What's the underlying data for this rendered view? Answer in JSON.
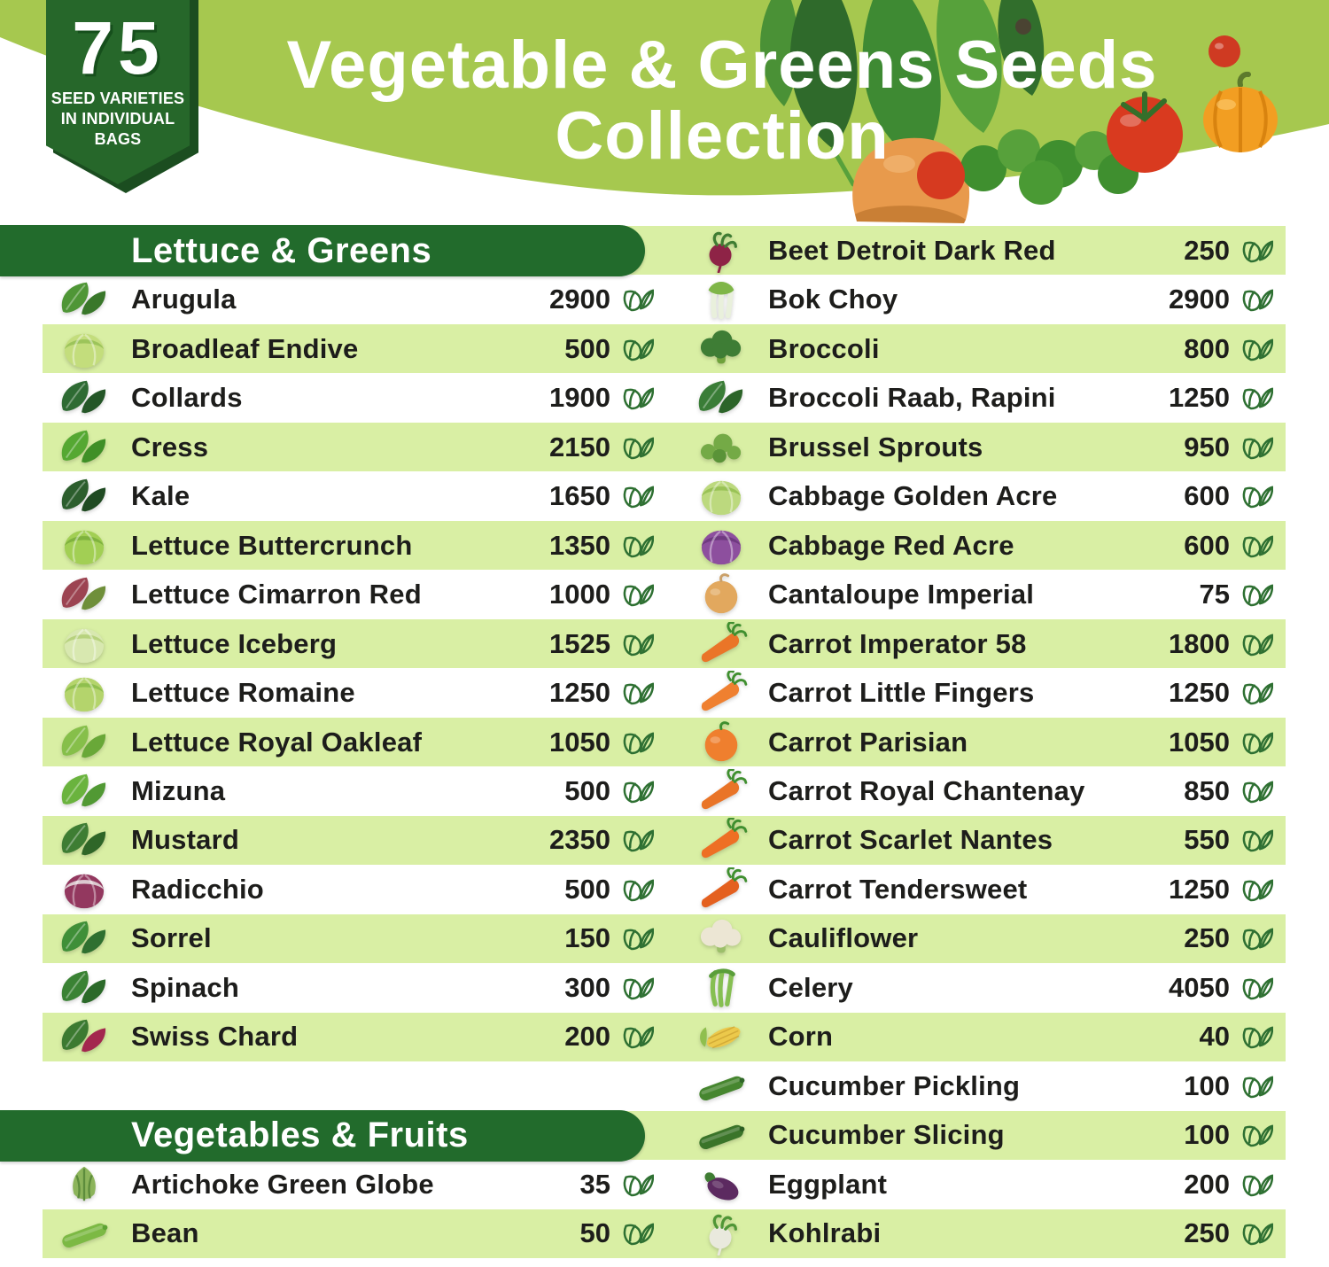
{
  "header": {
    "badge": {
      "number": "75",
      "caption_lines": [
        "SEED VARIETIES",
        "IN INDIVIDUAL",
        "BAGS"
      ]
    },
    "title_line1": "Vegetable & Greens Seeds",
    "title_line2": "Collection",
    "decor_icons": [
      "mixed-greens",
      "seed-dot",
      "cherry-tomato",
      "cantaloupe",
      "kale",
      "tomato",
      "pumpkin"
    ]
  },
  "colors": {
    "banner_green": "#a6c84f",
    "badge_green": "#26672a",
    "badge_shadow_green": "#1b4d20",
    "section_bar_green": "#226b2c",
    "stripe_green": "#d9efa4",
    "row_white": "#ffffff",
    "text_dark": "#1d1d1b",
    "seed_icon_green": "#2e7032"
  },
  "list": {
    "sections_left": [
      "Lettuce & Greens",
      "Vegetables & Fruits"
    ],
    "rows": [
      {
        "left": {
          "type": "section",
          "label": "Lettuce & Greens"
        },
        "right": {
          "type": "item",
          "name": "Beet Detroit Dark Red",
          "count": "250",
          "veg": "beet",
          "shape": "beet",
          "c1": "#8e2346",
          "c2": "#3f7d33"
        }
      },
      {
        "left": {
          "type": "item",
          "name": "Arugula",
          "count": "2900",
          "veg": "arugula",
          "shape": "leaf",
          "c1": "#4f9636",
          "c2": "#39772a"
        },
        "right": {
          "type": "item",
          "name": "Bok Choy",
          "count": "2900",
          "veg": "bok-choy",
          "shape": "bokchoy",
          "c1": "#7fb648",
          "c2": "#e9f0dc"
        }
      },
      {
        "left": {
          "type": "item",
          "name": "Broadleaf Endive",
          "count": "500",
          "veg": "broadleaf-endive",
          "shape": "head",
          "c1": "#c3dd7c",
          "c2": "#9cc45a"
        },
        "right": {
          "type": "item",
          "name": "Broccoli",
          "count": "800",
          "veg": "broccoli",
          "shape": "floret",
          "c1": "#3e7d35",
          "c2": "#6fa23c"
        }
      },
      {
        "left": {
          "type": "item",
          "name": "Collards",
          "count": "1900",
          "veg": "collards",
          "shape": "leaf",
          "c1": "#2e6b33",
          "c2": "#245627"
        },
        "right": {
          "type": "item",
          "name": "Broccoli Raab, Rapini",
          "count": "1250",
          "veg": "broccoli-raab",
          "shape": "leaf",
          "c1": "#3a7d37",
          "c2": "#2c6429"
        }
      },
      {
        "left": {
          "type": "item",
          "name": "Cress",
          "count": "2150",
          "veg": "cress",
          "shape": "leaf",
          "c1": "#55a832",
          "c2": "#3f8f27"
        },
        "right": {
          "type": "item",
          "name": "Brussel Sprouts",
          "count": "950",
          "veg": "brussel-sprouts",
          "shape": "sprouts",
          "c1": "#74aa46",
          "c2": "#5a9338"
        }
      },
      {
        "left": {
          "type": "item",
          "name": "Kale",
          "count": "1650",
          "veg": "kale",
          "shape": "leaf",
          "c1": "#2c5e2d",
          "c2": "#1f4a22"
        },
        "right": {
          "type": "item",
          "name": "Cabbage Golden Acre",
          "count": "600",
          "veg": "cabbage-golden-acre",
          "shape": "head",
          "c1": "#bcd97e",
          "c2": "#99c256"
        }
      },
      {
        "left": {
          "type": "item",
          "name": "Lettuce Buttercrunch",
          "count": "1350",
          "veg": "lettuce-buttercrunch",
          "shape": "head",
          "c1": "#a2cf54",
          "c2": "#7fb23e"
        },
        "right": {
          "type": "item",
          "name": "Cabbage Red Acre",
          "count": "600",
          "veg": "cabbage-red-acre",
          "shape": "head",
          "c1": "#8d4f9e",
          "c2": "#6f3a80"
        }
      },
      {
        "left": {
          "type": "item",
          "name": "Lettuce Cimarron Red",
          "count": "1000",
          "veg": "lettuce-cimarron-red",
          "shape": "leaf",
          "c1": "#9c4452",
          "c2": "#6f8f3a"
        },
        "right": {
          "type": "item",
          "name": "Cantaloupe Imperial",
          "count": "75",
          "veg": "cantaloupe",
          "shape": "round",
          "c1": "#e2a85e",
          "c2": "#caa069"
        }
      },
      {
        "left": {
          "type": "item",
          "name": "Lettuce Iceberg",
          "count": "1525",
          "veg": "lettuce-iceberg",
          "shape": "head",
          "c1": "#d8e8b0",
          "c2": "#b7d27e"
        },
        "right": {
          "type": "item",
          "name": "Carrot Imperator 58",
          "count": "1800",
          "veg": "carrot",
          "shape": "root",
          "c1": "#ea7528",
          "c2": "#3f8f2f"
        }
      },
      {
        "left": {
          "type": "item",
          "name": "Lettuce Romaine",
          "count": "1250",
          "veg": "lettuce-romaine",
          "shape": "head",
          "c1": "#b4d46c",
          "c2": "#8fbf4e"
        },
        "right": {
          "type": "item",
          "name": "Carrot Little Fingers",
          "count": "1250",
          "veg": "carrot",
          "shape": "root",
          "c1": "#ef8030",
          "c2": "#3f8f2f"
        }
      },
      {
        "left": {
          "type": "item",
          "name": "Lettuce Royal Oakleaf",
          "count": "1050",
          "veg": "lettuce-royal-oakleaf",
          "shape": "leaf",
          "c1": "#86bf4a",
          "c2": "#69a838"
        },
        "right": {
          "type": "item",
          "name": "Carrot Parisian",
          "count": "1050",
          "veg": "carrot",
          "shape": "round",
          "c1": "#ef7f2e",
          "c2": "#3f8f2f"
        }
      },
      {
        "left": {
          "type": "item",
          "name": "Mizuna",
          "count": "500",
          "veg": "mizuna",
          "shape": "leaf",
          "c1": "#6ab33e",
          "c2": "#519934"
        },
        "right": {
          "type": "item",
          "name": "Carrot Royal Chantenay",
          "count": "850",
          "veg": "carrot",
          "shape": "root",
          "c1": "#e97427",
          "c2": "#3f8f2f"
        }
      },
      {
        "left": {
          "type": "item",
          "name": "Mustard",
          "count": "2350",
          "veg": "mustard",
          "shape": "leaf",
          "c1": "#3e7d33",
          "c2": "#2f6628"
        },
        "right": {
          "type": "item",
          "name": "Carrot Scarlet Nantes",
          "count": "550",
          "veg": "carrot",
          "shape": "root",
          "c1": "#ee6f24",
          "c2": "#3f8f2f"
        }
      },
      {
        "left": {
          "type": "item",
          "name": "Radicchio",
          "count": "500",
          "veg": "radicchio",
          "shape": "head",
          "c1": "#93385f",
          "c2": "#dcc9cf"
        },
        "right": {
          "type": "item",
          "name": "Carrot Tendersweet",
          "count": "1250",
          "veg": "carrot",
          "shape": "root",
          "c1": "#e4601f",
          "c2": "#3f8f2f"
        }
      },
      {
        "left": {
          "type": "item",
          "name": "Sorrel",
          "count": "150",
          "veg": "sorrel",
          "shape": "leaf",
          "c1": "#3f8f38",
          "c2": "#2f7030"
        },
        "right": {
          "type": "item",
          "name": "Cauliflower",
          "count": "250",
          "veg": "cauliflower",
          "shape": "floret",
          "c1": "#ece6d4",
          "c2": "#9cbf6a"
        }
      },
      {
        "left": {
          "type": "item",
          "name": "Spinach",
          "count": "300",
          "veg": "spinach",
          "shape": "leaf",
          "c1": "#3a8234",
          "c2": "#2b6929"
        },
        "right": {
          "type": "item",
          "name": "Celery",
          "count": "4050",
          "veg": "celery",
          "shape": "stalk",
          "c1": "#86bf52",
          "c2": "#5a9e3a"
        }
      },
      {
        "left": {
          "type": "item",
          "name": "Swiss Chard",
          "count": "200",
          "veg": "swiss-chard",
          "shape": "leaf",
          "c1": "#3c7a31",
          "c2": "#a3274e"
        },
        "right": {
          "type": "item",
          "name": "Corn",
          "count": "40",
          "veg": "corn",
          "shape": "corn",
          "c1": "#ecc94b",
          "c2": "#8fbf4e"
        }
      },
      {
        "left": {
          "type": "empty"
        },
        "right": {
          "type": "item",
          "name": "Cucumber Pickling",
          "count": "100",
          "veg": "cucumber",
          "shape": "long",
          "c1": "#46862f",
          "c2": "#2f6628"
        }
      },
      {
        "left": {
          "type": "section",
          "label": "Vegetables & Fruits"
        },
        "right": {
          "type": "item",
          "name": "Cucumber Slicing",
          "count": "100",
          "veg": "cucumber",
          "shape": "long",
          "c1": "#3a7429",
          "c2": "#2b5e22"
        }
      },
      {
        "left": {
          "type": "item",
          "name": "Artichoke Green Globe",
          "count": "35",
          "veg": "artichoke",
          "shape": "artichoke",
          "c1": "#8cb45b",
          "c2": "#5d8c3c"
        },
        "right": {
          "type": "item",
          "name": "Eggplant",
          "count": "200",
          "veg": "eggplant",
          "shape": "eggplant",
          "c1": "#5c2a60",
          "c2": "#3f7d33"
        }
      },
      {
        "left": {
          "type": "item",
          "name": "Bean",
          "count": "50",
          "veg": "bean",
          "shape": "long",
          "c1": "#7cb944",
          "c2": "#5da334"
        },
        "right": {
          "type": "item",
          "name": "Kohlrabi",
          "count": "250",
          "veg": "kohlrabi",
          "shape": "beet",
          "c1": "#e9e9dd",
          "c2": "#4f9636"
        }
      }
    ]
  }
}
